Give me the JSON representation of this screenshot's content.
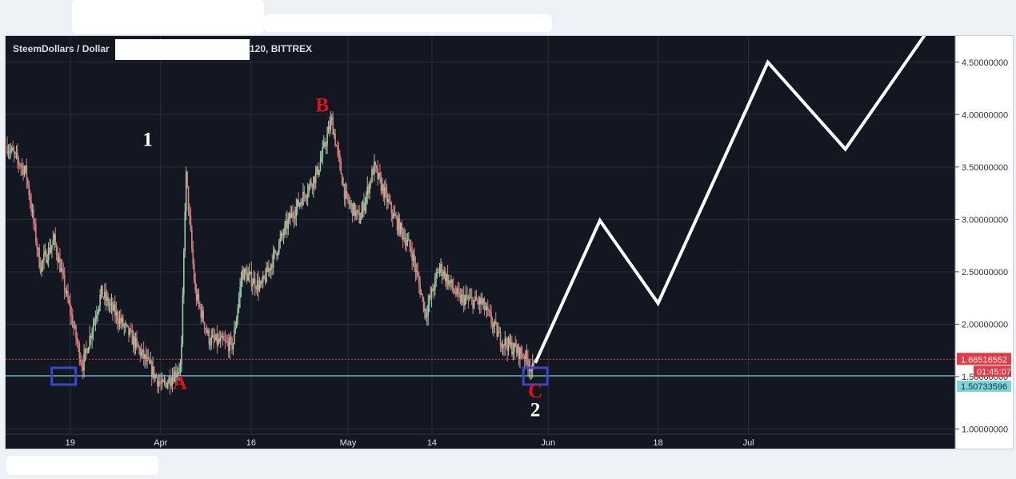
{
  "chart_data": {
    "type": "candlestick",
    "title": "SteemDollars / Dollar",
    "title_suffix": "120, BITTREX",
    "ylim": [
      0.95,
      4.75
    ],
    "y_ticks": [
      "1.00000000",
      "1.50000000",
      "2.00000000",
      "2.50000000",
      "3.00000000",
      "3.50000000",
      "4.00000000",
      "4.50000000"
    ],
    "x_ticks": [
      "19",
      "Apr",
      "16",
      "May",
      "14",
      "Jun",
      "18",
      "Jul"
    ],
    "price_line": {
      "value": 1.66516552,
      "label": "1.66516552",
      "color": "#e63946"
    },
    "countdown_label": "01:45:07",
    "support_line": {
      "value": 1.50733596,
      "label": "1.50733596",
      "color": "#7fd3dd"
    },
    "annotations": [
      {
        "text": "1",
        "color": "#ffffff"
      },
      {
        "text": "A",
        "color": "#e0111a"
      },
      {
        "text": "B",
        "color": "#e0111a"
      },
      {
        "text": "C",
        "color": "#e0111a"
      },
      {
        "text": "2",
        "color": "#ffffff"
      }
    ],
    "price_path": [
      [
        0.0,
        3.7
      ],
      [
        0.02,
        3.45
      ],
      [
        0.035,
        2.55
      ],
      [
        0.05,
        2.8
      ],
      [
        0.065,
        2.2
      ],
      [
        0.08,
        1.6
      ],
      [
        0.1,
        2.3
      ],
      [
        0.13,
        1.9
      ],
      [
        0.165,
        1.4
      ],
      [
        0.185,
        1.6
      ],
      [
        0.19,
        3.45
      ],
      [
        0.2,
        2.3
      ],
      [
        0.215,
        1.85
      ],
      [
        0.24,
        1.8
      ],
      [
        0.25,
        2.5
      ],
      [
        0.27,
        2.35
      ],
      [
        0.3,
        3.0
      ],
      [
        0.33,
        3.45
      ],
      [
        0.345,
        3.95
      ],
      [
        0.36,
        3.2
      ],
      [
        0.375,
        3.0
      ],
      [
        0.39,
        3.5
      ],
      [
        0.41,
        3.05
      ],
      [
        0.43,
        2.7
      ],
      [
        0.445,
        2.1
      ],
      [
        0.46,
        2.55
      ],
      [
        0.48,
        2.25
      ],
      [
        0.505,
        2.2
      ],
      [
        0.525,
        1.85
      ],
      [
        0.55,
        1.7
      ],
      [
        0.56,
        1.55
      ]
    ],
    "projection": [
      [
        "2018-05-30",
        1.63
      ],
      [
        "2018-06-09",
        2.99
      ],
      [
        "2018-06-18",
        2.2
      ],
      [
        "2018-07-05",
        4.5
      ],
      [
        "2018-07-17",
        3.67
      ],
      [
        "2018-08-01",
        5.0
      ]
    ],
    "colors": {
      "background": "#131722",
      "grid": "#2a2e39",
      "bull": "#9ccaa4",
      "bear": "#d98080",
      "projection": "#ffffff",
      "marker": "#3b45c8"
    }
  }
}
